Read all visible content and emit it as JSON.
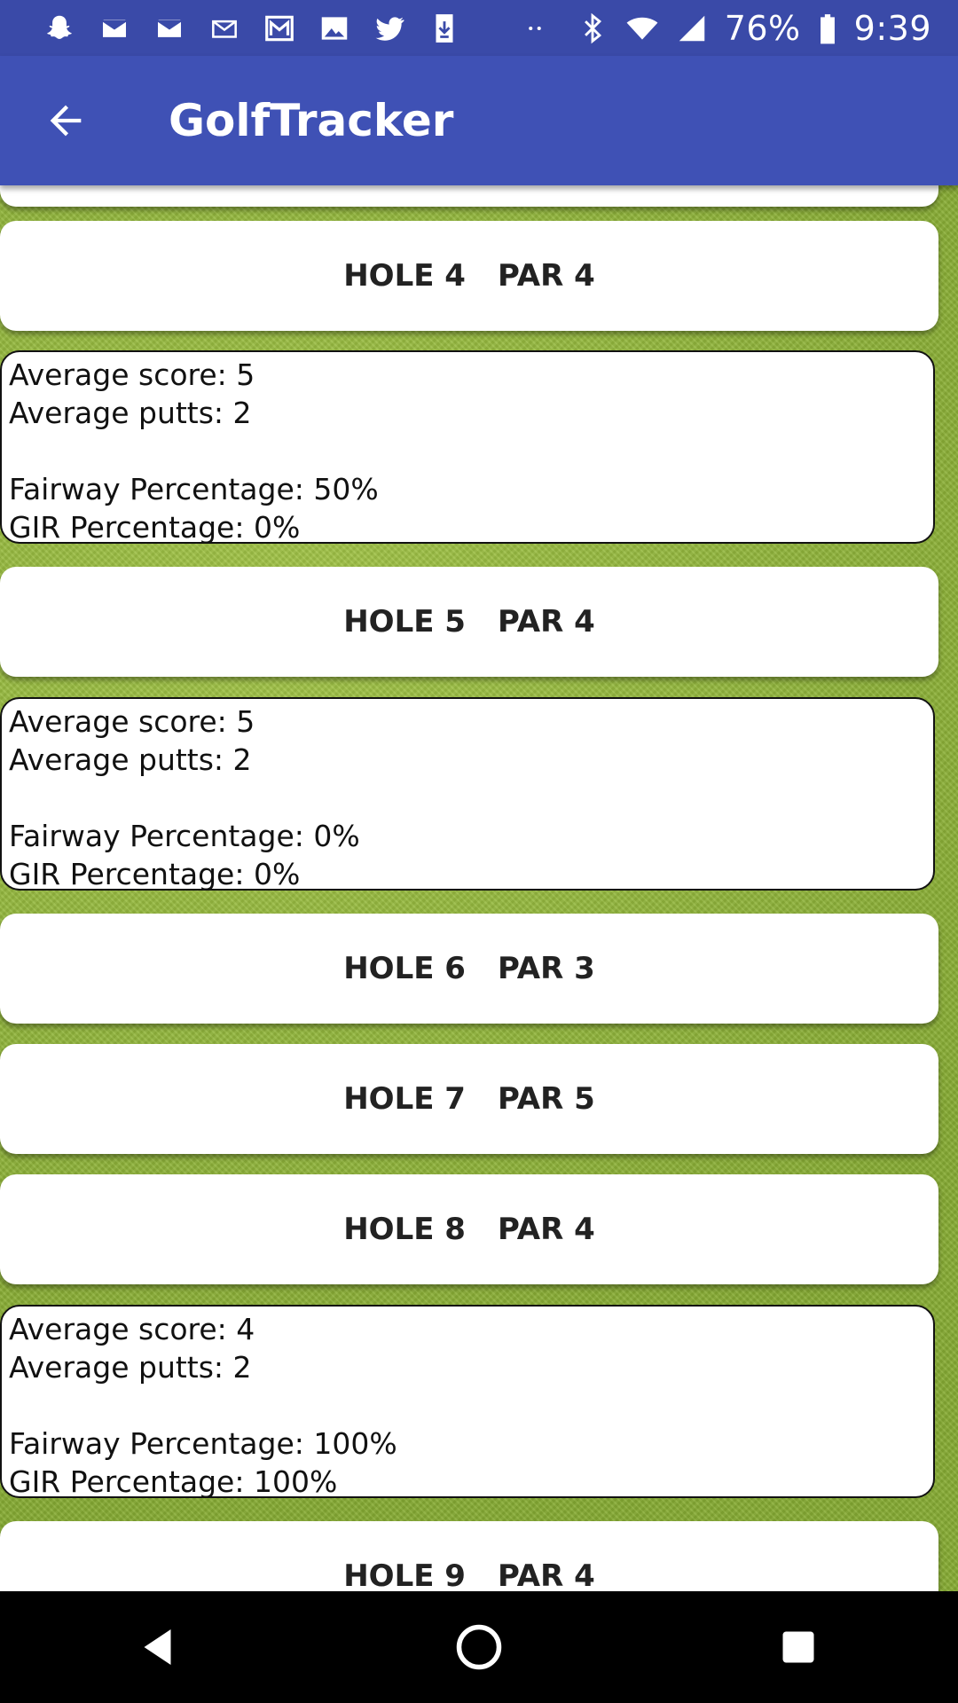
{
  "status_bar": {
    "battery": "76%",
    "time": "9:39",
    "notification_icons": [
      "snapchat-icon",
      "mail-icon",
      "mail-icon",
      "mail-outline-icon",
      "gmail-icon",
      "image-icon",
      "twitter-icon",
      "download-icon",
      "more-dots-icon"
    ],
    "system_icons": [
      "bluetooth-icon",
      "wifi-icon",
      "signal-icon",
      "battery-icon"
    ]
  },
  "app_bar": {
    "title": "GolfTracker",
    "back_icon": "arrow-left-icon"
  },
  "holes": [
    {
      "hole": "HOLE 4",
      "par": "PAR 4",
      "stats": {
        "avg_score": "Average score: 5",
        "avg_putts": "Average putts: 2",
        "fairway": "Fairway Percentage: 50%",
        "gir": "GIR Percentage: 0%"
      }
    },
    {
      "hole": "HOLE 5",
      "par": "PAR 4",
      "stats": {
        "avg_score": "Average score: 5",
        "avg_putts": "Average putts: 2",
        "fairway": "Fairway Percentage: 0%",
        "gir": "GIR Percentage: 0%"
      }
    },
    {
      "hole": "HOLE 6",
      "par": "PAR 3"
    },
    {
      "hole": "HOLE 7",
      "par": "PAR 5"
    },
    {
      "hole": "HOLE 8",
      "par": "PAR 4",
      "stats": {
        "avg_score": "Average score: 4",
        "avg_putts": "Average putts: 2",
        "fairway": "Fairway Percentage: 100%",
        "gir": "GIR Percentage: 100%"
      }
    },
    {
      "hole": "HOLE 9",
      "par": "PAR 4"
    }
  ],
  "nav_bar": {
    "icons": [
      "back-triangle-icon",
      "home-circle-icon",
      "recents-square-icon"
    ]
  },
  "colors": {
    "status_bar": "#3a4aa8",
    "app_bar": "#3f51b5",
    "card": "#ffffff",
    "grass": "#8fb33a",
    "nav_bar": "#000000"
  }
}
